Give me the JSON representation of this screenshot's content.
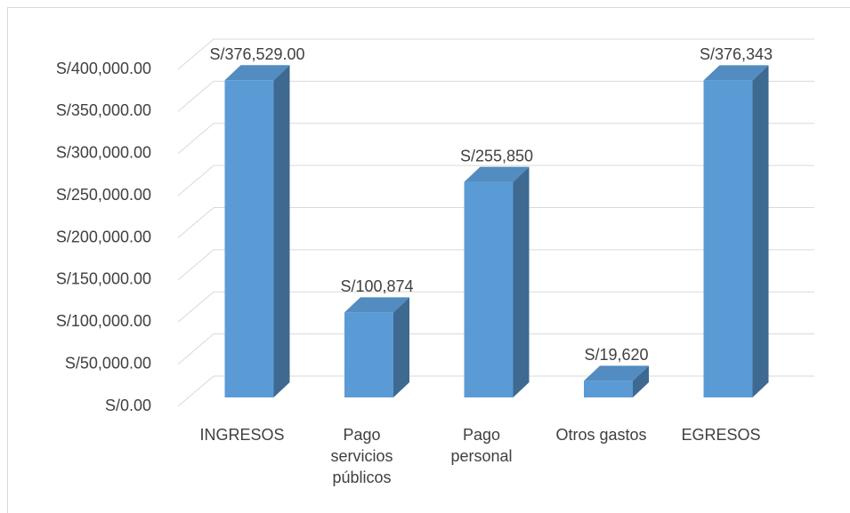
{
  "chart_data": {
    "type": "bar3d",
    "categories": [
      "INGRESOS",
      "Pago servicios públicos",
      "Pago personal",
      "Otros gastos",
      "EGRESOS"
    ],
    "values": [
      376529,
      100874,
      255850,
      19620,
      376343
    ],
    "value_labels": [
      "S/376,529.00",
      "S/100,874",
      "S/255,850",
      "S/19,620",
      "S/376,343"
    ],
    "color": "#5b9bd5",
    "ylim": [
      0,
      400000
    ],
    "yticks": [
      {
        "value": 0,
        "label": "S/0.00"
      },
      {
        "value": 50000,
        "label": "S/50,000.00"
      },
      {
        "value": 100000,
        "label": "S/100,000.00"
      },
      {
        "value": 150000,
        "label": "S/150,000.00"
      },
      {
        "value": 200000,
        "label": "S/200,000.00"
      },
      {
        "value": 250000,
        "label": "S/250,000.00"
      },
      {
        "value": 300000,
        "label": "S/300,000.00"
      },
      {
        "value": 350000,
        "label": "S/350,000.00"
      },
      {
        "value": 400000,
        "label": "S/400,000.00"
      }
    ],
    "grid": true
  }
}
